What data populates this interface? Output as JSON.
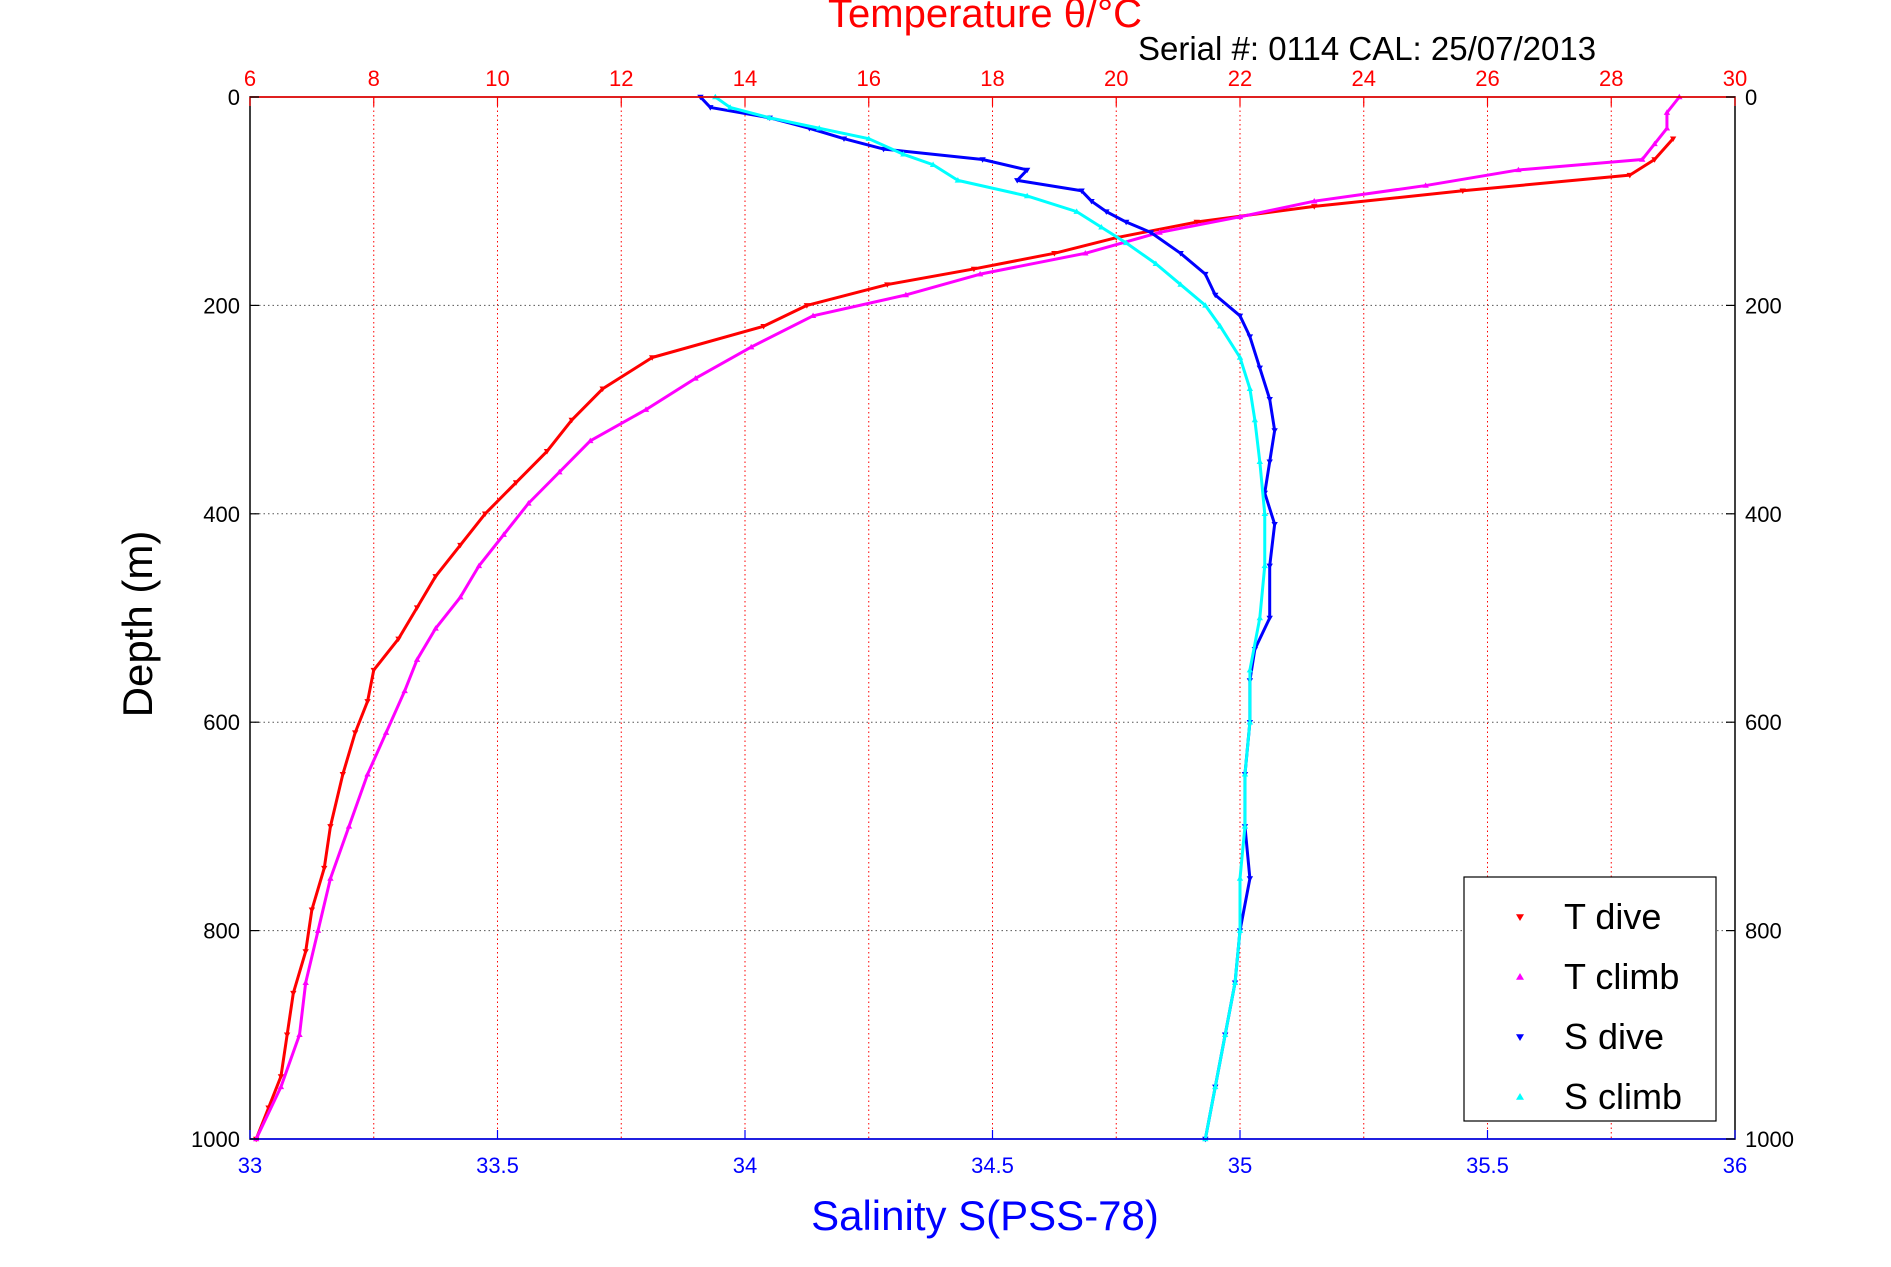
{
  "chart_data": {
    "type": "scatter",
    "title_top": "Temperature θ/°C",
    "subtitle": "Serial #: 0114  CAL: 25/07/2013",
    "ylabel": "Depth (m)",
    "xlabel_bottom": "Salinity S(PSS-78)",
    "y_inverted": true,
    "ylim": [
      0,
      1000
    ],
    "x_top_lim": [
      6,
      30
    ],
    "x_bottom_lim": [
      33,
      36
    ],
    "x_top_ticks": [
      "6",
      "8",
      "10",
      "12",
      "14",
      "16",
      "18",
      "20",
      "22",
      "24",
      "26",
      "28",
      "30"
    ],
    "x_bottom_ticks": [
      "33",
      "33.5",
      "34",
      "34.5",
      "35",
      "35.5",
      "36"
    ],
    "y_ticks": [
      "0",
      "200",
      "400",
      "600",
      "800",
      "1000"
    ],
    "grid": true,
    "legend_position": "bottom-right",
    "colors": {
      "temperature_axis": "#ff0000",
      "salinity_axis": "#0000ff",
      "grid_vertical": "#ff0000",
      "grid_horizontal": "#555555"
    },
    "series": [
      {
        "name": "T dive",
        "axis": "top",
        "color": "#ff0000",
        "marker": "triangle-down",
        "depth": [
          40,
          60,
          75,
          90,
          105,
          120,
          135,
          150,
          165,
          180,
          200,
          220,
          250,
          280,
          310,
          340,
          370,
          400,
          430,
          460,
          490,
          520,
          550,
          580,
          610,
          650,
          700,
          740,
          780,
          820,
          860,
          900,
          940,
          970,
          1000
        ],
        "values": [
          29.0,
          28.7,
          28.3,
          25.6,
          23.2,
          21.3,
          20.0,
          19.0,
          17.7,
          16.3,
          15.0,
          14.3,
          12.5,
          11.7,
          11.2,
          10.8,
          10.3,
          9.8,
          9.4,
          9.0,
          8.7,
          8.4,
          8.0,
          7.9,
          7.7,
          7.5,
          7.3,
          7.2,
          7.0,
          6.9,
          6.7,
          6.6,
          6.5,
          6.3,
          6.1
        ]
      },
      {
        "name": "T climb",
        "axis": "top",
        "color": "#ff00ff",
        "marker": "triangle-up",
        "depth": [
          0,
          15,
          30,
          45,
          60,
          70,
          85,
          100,
          115,
          130,
          150,
          170,
          190,
          210,
          240,
          270,
          300,
          330,
          360,
          390,
          420,
          450,
          480,
          510,
          540,
          570,
          610,
          650,
          700,
          750,
          800,
          850,
          900,
          950,
          1000
        ],
        "values": [
          29.1,
          28.9,
          28.9,
          28.7,
          28.5,
          26.5,
          25.0,
          23.2,
          22.0,
          20.7,
          19.5,
          17.8,
          16.6,
          15.1,
          14.1,
          13.2,
          12.4,
          11.5,
          11.0,
          10.5,
          10.1,
          9.7,
          9.4,
          9.0,
          8.7,
          8.5,
          8.2,
          7.9,
          7.6,
          7.3,
          7.1,
          6.9,
          6.8,
          6.5,
          6.1
        ]
      },
      {
        "name": "S dive",
        "axis": "bottom",
        "color": "#0000ff",
        "marker": "triangle-down",
        "depth": [
          0,
          10,
          20,
          30,
          40,
          50,
          60,
          70,
          80,
          90,
          100,
          110,
          120,
          130,
          150,
          170,
          190,
          210,
          230,
          260,
          290,
          320,
          350,
          380,
          410,
          450,
          500,
          530,
          560,
          600,
          650,
          700,
          750,
          800,
          850,
          900,
          950,
          1000
        ],
        "values": [
          33.91,
          33.93,
          34.05,
          34.13,
          34.2,
          34.28,
          34.48,
          34.57,
          34.55,
          34.68,
          34.7,
          34.73,
          34.77,
          34.82,
          34.88,
          34.93,
          34.95,
          35.0,
          35.02,
          35.04,
          35.06,
          35.07,
          35.06,
          35.05,
          35.07,
          35.06,
          35.06,
          35.03,
          35.02,
          35.02,
          35.01,
          35.01,
          35.02,
          35.0,
          34.99,
          34.97,
          34.95,
          34.93
        ]
      },
      {
        "name": "S climb",
        "axis": "bottom",
        "color": "#00ffff",
        "marker": "triangle-up",
        "depth": [
          0,
          10,
          20,
          30,
          40,
          55,
          65,
          80,
          95,
          110,
          125,
          140,
          160,
          180,
          200,
          220,
          250,
          280,
          310,
          350,
          400,
          450,
          500,
          550,
          600,
          650,
          700,
          750,
          800,
          850,
          900,
          950,
          1000
        ],
        "values": [
          33.94,
          33.97,
          34.05,
          34.15,
          34.25,
          34.32,
          34.38,
          34.43,
          34.57,
          34.67,
          34.72,
          34.77,
          34.83,
          34.88,
          34.93,
          34.96,
          35.0,
          35.02,
          35.03,
          35.04,
          35.05,
          35.05,
          35.04,
          35.02,
          35.02,
          35.01,
          35.01,
          35.0,
          35.0,
          34.99,
          34.97,
          34.95,
          34.93
        ]
      }
    ]
  }
}
